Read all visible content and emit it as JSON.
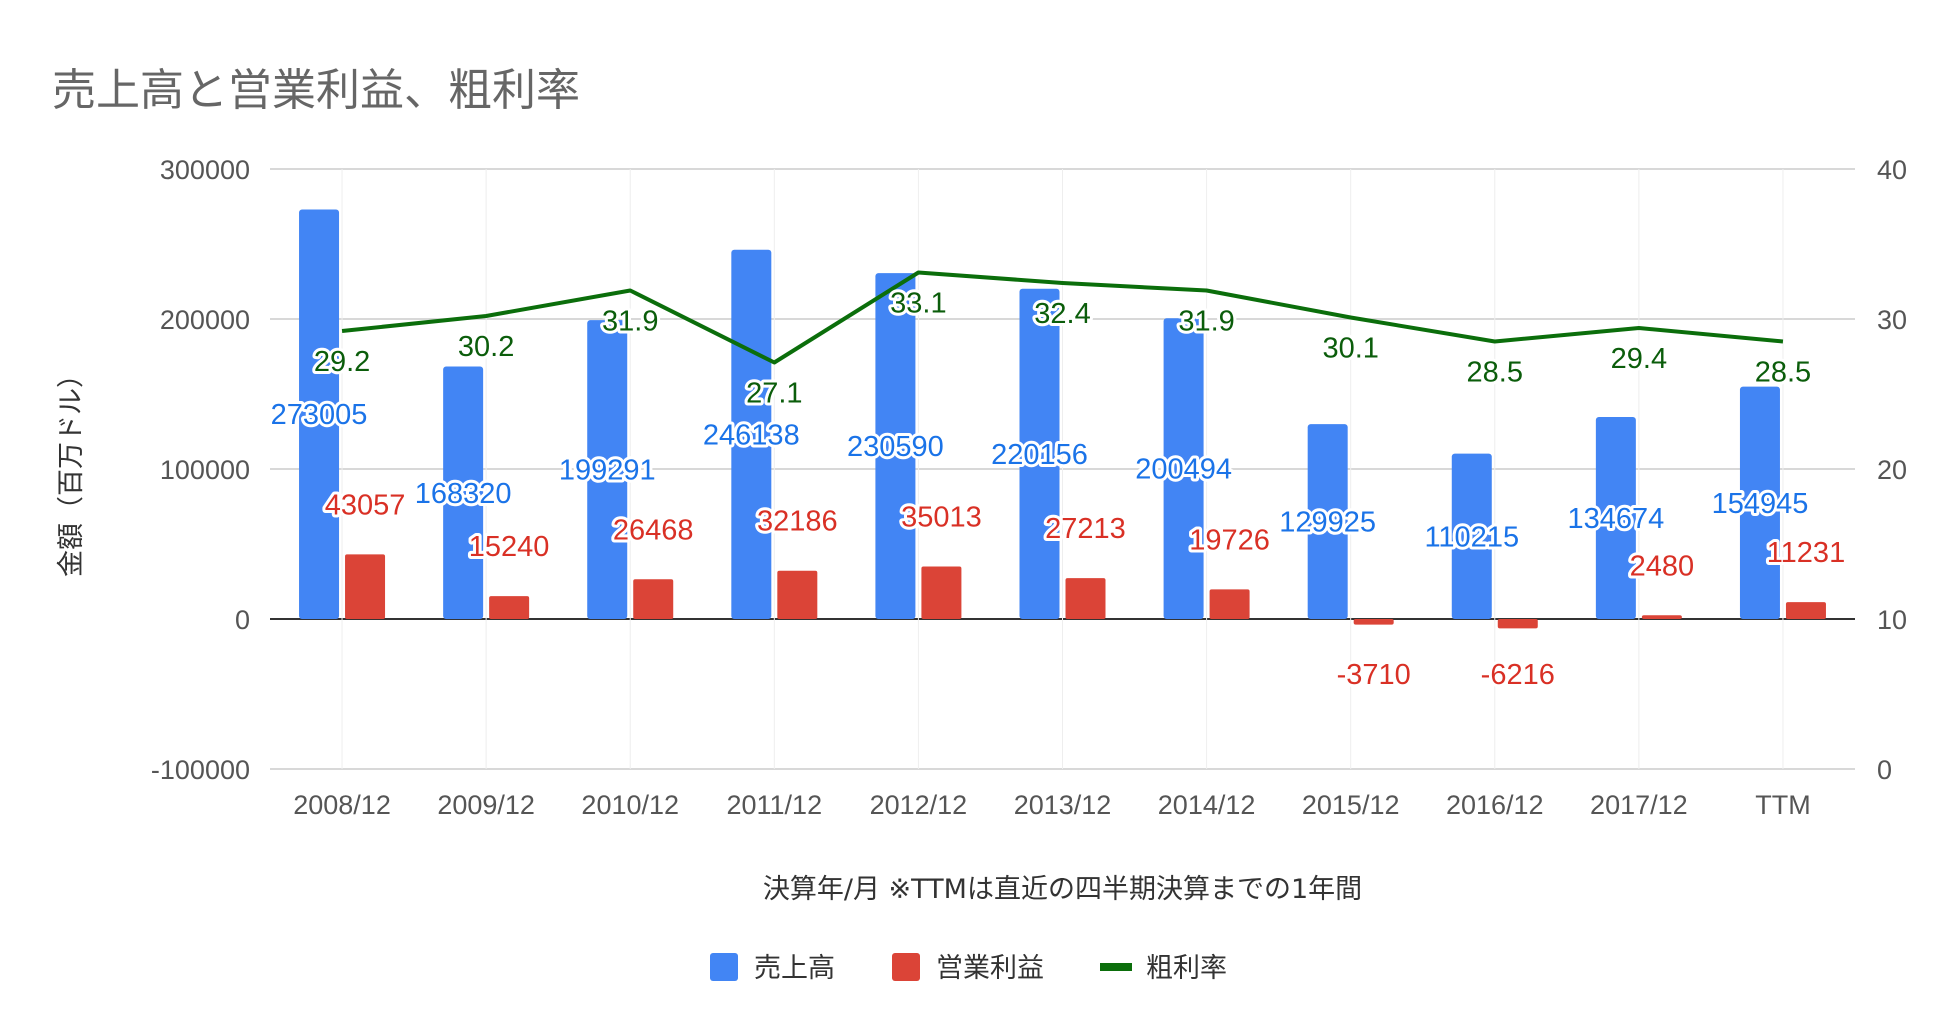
{
  "chart_data": {
    "type": "bar",
    "title": "売上高と営業利益、粗利率",
    "xlabel": "決算年/月 ※TTMは直近の四半期決算までの1年間",
    "ylabel": "金額（百万ドル）",
    "categories": [
      "2008/12",
      "2009/12",
      "2010/12",
      "2011/12",
      "2012/12",
      "2013/12",
      "2014/12",
      "2015/12",
      "2016/12",
      "2017/12",
      "TTM"
    ],
    "ylim": [
      -100000,
      300000
    ],
    "y_ticks": [
      "-100000",
      "0",
      "100000",
      "200000",
      "300000"
    ],
    "y2lim": [
      0,
      40
    ],
    "y2_ticks": [
      "0",
      "10",
      "20",
      "30",
      "40"
    ],
    "series": [
      {
        "name": "売上高",
        "kind": "bar",
        "axis": "left",
        "color": "#4285f4",
        "values": [
          273005,
          168320,
          199291,
          246138,
          230590,
          220156,
          200494,
          129925,
          110215,
          134674,
          154945
        ],
        "labels": [
          "273005",
          "168320",
          "199291",
          "246138",
          "230590",
          "220156",
          "200494",
          "129925",
          "110215",
          "134674",
          "154945"
        ]
      },
      {
        "name": "営業利益",
        "kind": "bar",
        "axis": "left",
        "color": "#db4437",
        "values": [
          43057,
          15240,
          26468,
          32186,
          35013,
          27213,
          19726,
          -3710,
          -6216,
          2480,
          11231
        ],
        "labels": [
          "43057",
          "15240",
          "26468",
          "32186",
          "35013",
          "27213",
          "19726",
          "-3710",
          "-6216",
          "2480",
          "11231"
        ]
      },
      {
        "name": "粗利率",
        "kind": "line",
        "axis": "right",
        "color": "#0b6e0b",
        "values": [
          29.2,
          30.2,
          31.9,
          27.1,
          33.1,
          32.4,
          31.9,
          30.1,
          28.5,
          29.4,
          28.5
        ],
        "labels": [
          "29.2",
          "30.2",
          "31.9",
          "27.1",
          "33.1",
          "32.4",
          "31.9",
          "30.1",
          "28.5",
          "29.4",
          "28.5"
        ]
      }
    ],
    "legend_position": "bottom",
    "grid": true
  }
}
